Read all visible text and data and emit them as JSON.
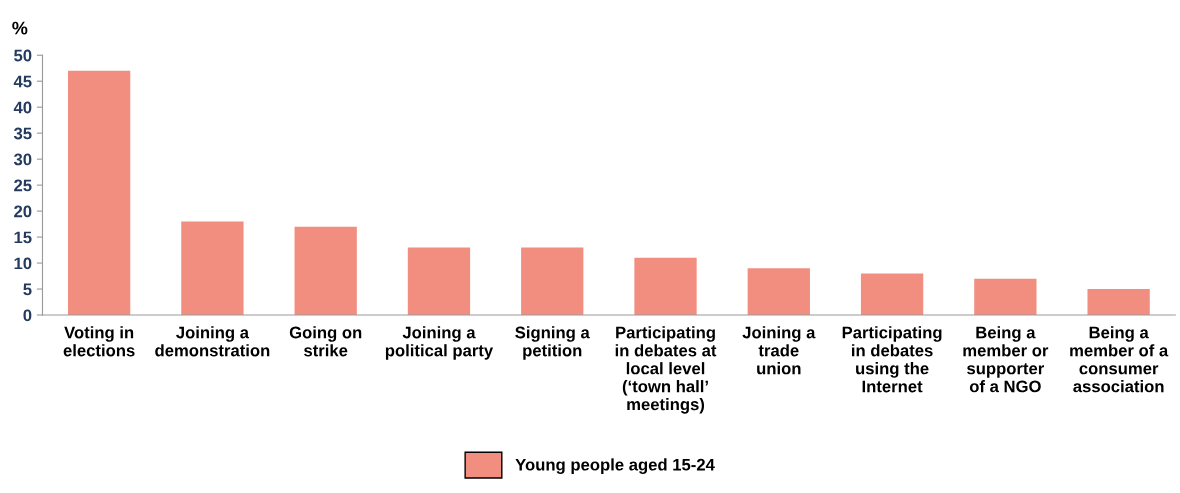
{
  "chart_data": {
    "type": "bar",
    "ylabel": "%",
    "categories": [
      "Voting in\nelections",
      "Joining a\ndemonstration",
      "Going on\nstrike",
      "Joining a\npolitical party",
      "Signing a\npetition",
      "Participating\nin debates at\nlocal level\n(‘town hall’\nmeetings)",
      "Joining a\ntrade\nunion",
      "Participating\nin debates\nusing the\nInternet",
      "Being a\nmember or\nsupporter\nof a NGO",
      "Being a\nmember of a\nconsumer\nassociation"
    ],
    "series": [
      {
        "name": "Young people aged 15-24",
        "color": "#f28e7f",
        "values": [
          47,
          18,
          17,
          13,
          13,
          11,
          9,
          8,
          7,
          5
        ]
      }
    ],
    "ylim": [
      0,
      50
    ],
    "yticks": [
      0,
      5,
      10,
      15,
      20,
      25,
      30,
      35,
      40,
      45,
      50
    ],
    "grid": false,
    "legend": "bottom"
  }
}
